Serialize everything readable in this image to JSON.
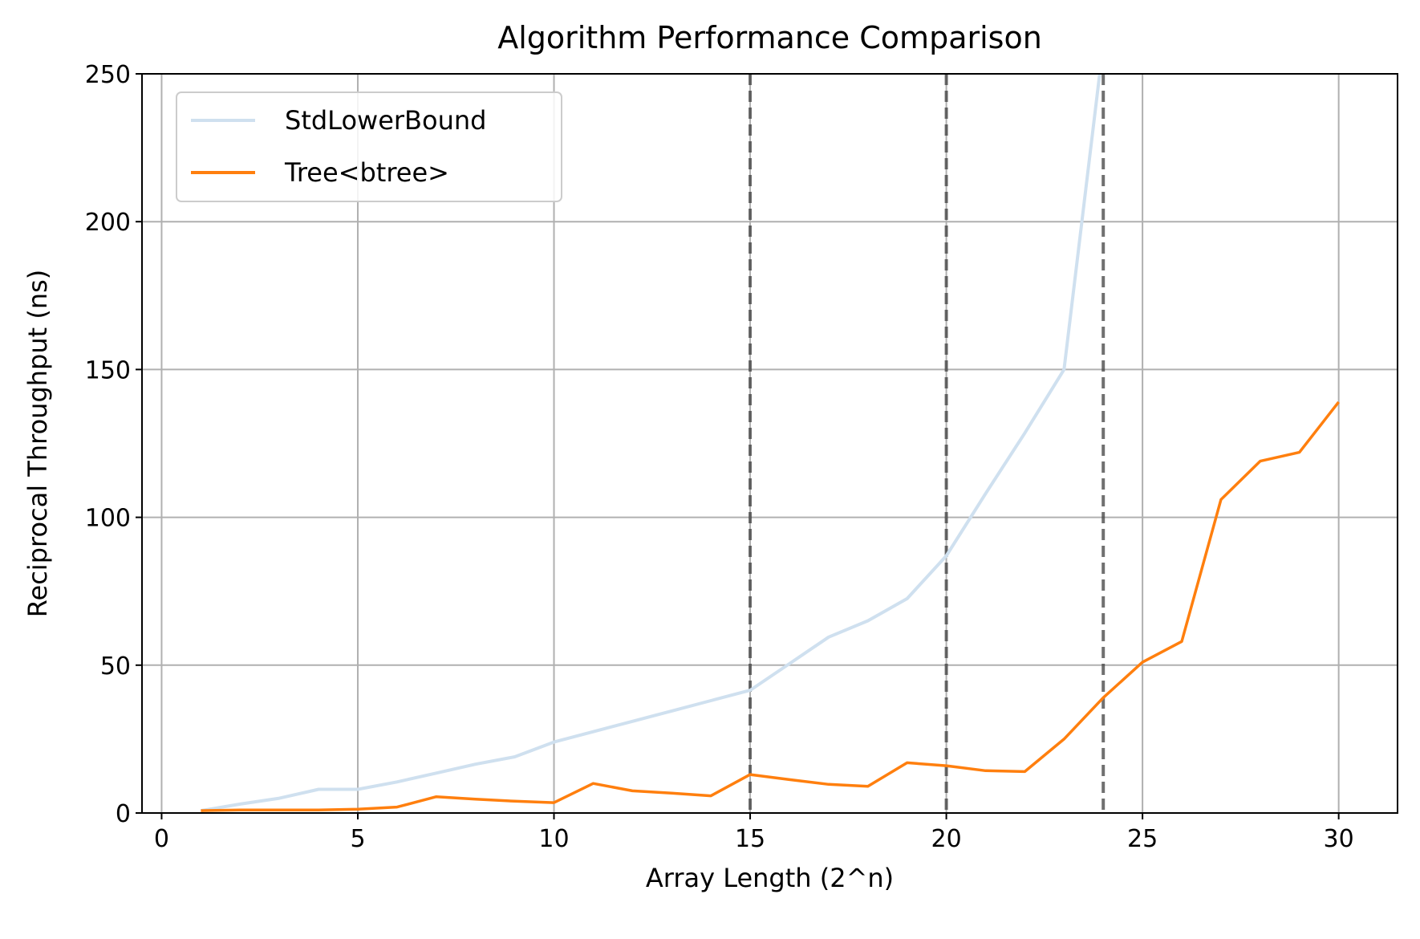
{
  "chart_data": {
    "type": "line",
    "title": "Algorithm Performance Comparison",
    "xlabel": "Array Length (2^n)",
    "ylabel": "Reciprocal Throughput (ns)",
    "xlim": [
      -0.5,
      31.5
    ],
    "ylim": [
      0,
      250
    ],
    "xticks": [
      0,
      5,
      10,
      15,
      20,
      25,
      30
    ],
    "yticks": [
      0,
      50,
      100,
      150,
      200,
      250
    ],
    "grid": true,
    "legend_position": "top-left",
    "vlines": [
      {
        "x": 15,
        "style": "dashed",
        "color": "#404040"
      },
      {
        "x": 20,
        "style": "dashed",
        "color": "#404040"
      },
      {
        "x": 24,
        "style": "dashed",
        "color": "#404040"
      }
    ],
    "series": [
      {
        "name": "StdLowerBound",
        "color": "#cfe0ef",
        "x": [
          1,
          2,
          3,
          4,
          5,
          6,
          7,
          8,
          9,
          10,
          11,
          12,
          13,
          14,
          15,
          16,
          17,
          18,
          19,
          20,
          21,
          22,
          23,
          24
        ],
        "y": [
          0.8,
          3,
          5,
          8,
          8,
          10.5,
          13.5,
          16.5,
          19,
          24,
          27.5,
          31,
          34.5,
          38,
          41.5,
          50.5,
          59.5,
          65,
          72.5,
          87,
          108,
          128.5,
          150,
          260
        ]
      },
      {
        "name": "Tree<btree>",
        "color": "#ff7f0e",
        "x": [
          1,
          2,
          3,
          4,
          5,
          6,
          7,
          8,
          9,
          10,
          11,
          12,
          13,
          14,
          15,
          16,
          17,
          18,
          19,
          20,
          21,
          22,
          23,
          24,
          25,
          26,
          27,
          28,
          29,
          30
        ],
        "y": [
          0.8,
          1,
          1,
          1,
          1.3,
          2,
          5.5,
          4.7,
          4,
          3.5,
          10,
          7.5,
          6.7,
          5.8,
          13,
          11.3,
          9.7,
          9,
          17,
          16,
          14.3,
          14,
          25,
          39,
          51,
          58,
          106,
          119,
          122,
          139
        ]
      }
    ]
  }
}
